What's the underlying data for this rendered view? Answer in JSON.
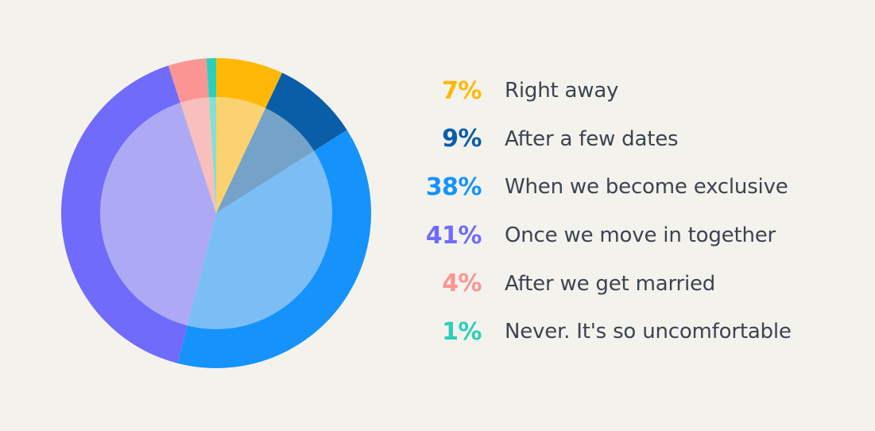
{
  "background_color": "#F4F2EC",
  "label_text_color": "#3A4450",
  "chart_data": {
    "type": "pie",
    "title": "",
    "legend_position": "right",
    "start_angle_deg": 0,
    "direction": "clockwise",
    "outer_radius_px": 195,
    "inner_highlight": {
      "radius_px": 146,
      "overlay_color": "rgba(245,243,237,0.46)"
    },
    "segments": [
      {
        "label": "Right away",
        "value": 7,
        "percent_label": "7%",
        "color": "#FFB806"
      },
      {
        "label": "After a few dates",
        "value": 9,
        "percent_label": "9%",
        "color": "#0A5EA8"
      },
      {
        "label": "When we become exclusive",
        "value": 38,
        "percent_label": "38%",
        "color": "#1593FB"
      },
      {
        "label": "Once we move in together",
        "value": 41,
        "percent_label": "41%",
        "color": "#716BFB"
      },
      {
        "label": "After we get married",
        "value": 4,
        "percent_label": "4%",
        "color": "#FB9593"
      },
      {
        "label": "Never. It's so uncomfortable",
        "value": 1,
        "percent_label": "1%",
        "color": "#2BCFBB"
      }
    ]
  }
}
